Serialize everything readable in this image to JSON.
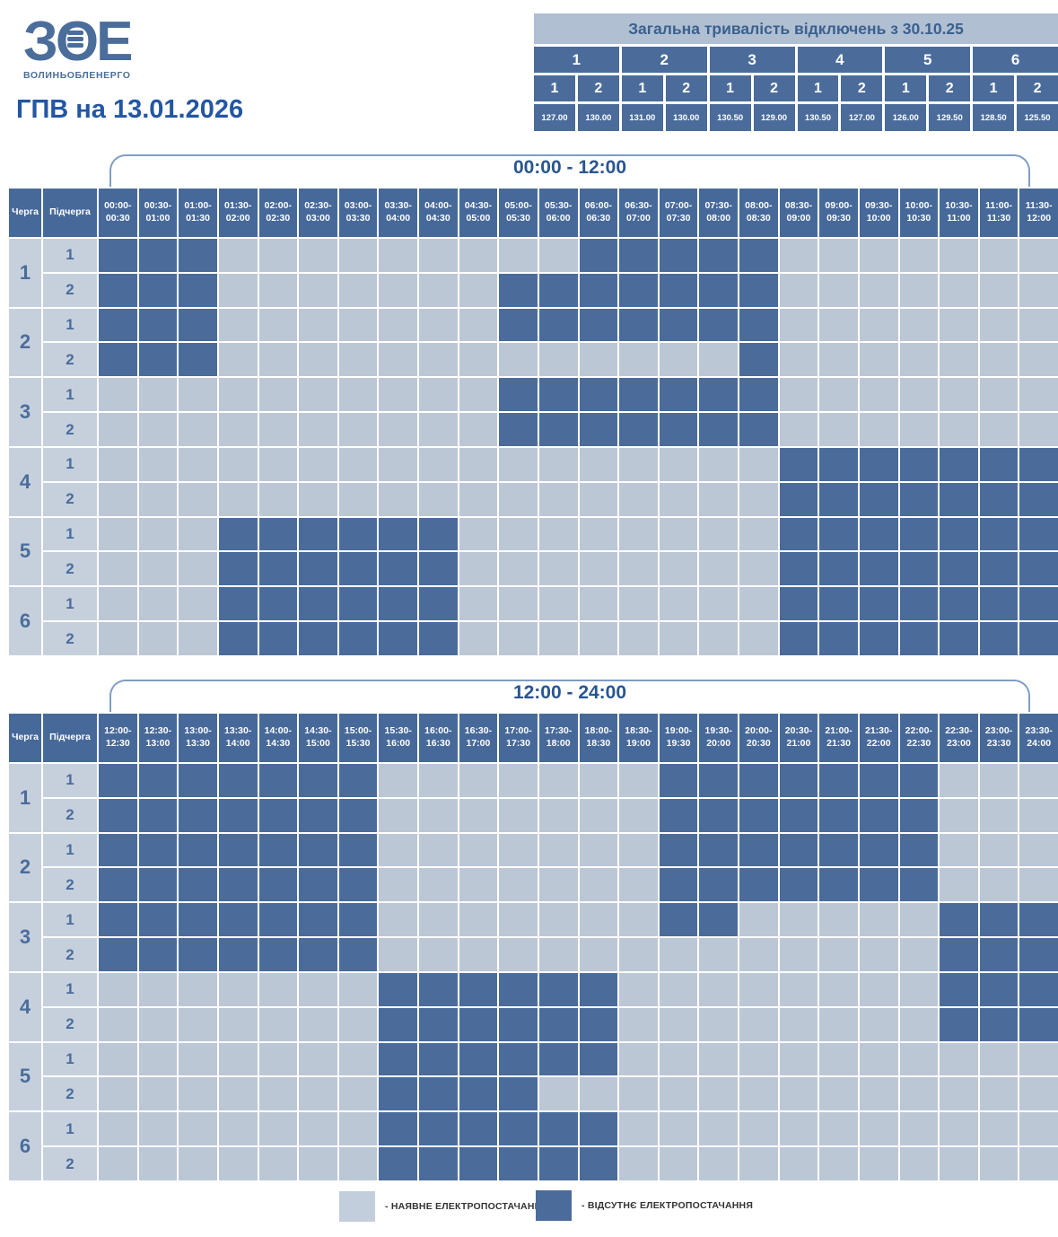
{
  "header": {
    "logo_mark_left": "З",
    "logo_mark_mid": "О",
    "logo_mark_right": "Е",
    "logo_text": "ВОЛИНЬОБЛЕНЕРГО",
    "title": "ГПВ на 13.01.2026"
  },
  "summary_table": {
    "title": "Загальна тривалість відключень з 30.10.25",
    "queues": [
      {
        "label": "1",
        "subs": [
          "1",
          "2"
        ],
        "values": [
          "127.00",
          "130.00"
        ]
      },
      {
        "label": "2",
        "subs": [
          "1",
          "2"
        ],
        "values": [
          "131.00",
          "130.00"
        ]
      },
      {
        "label": "3",
        "subs": [
          "1",
          "2"
        ],
        "values": [
          "130.50",
          "129.00"
        ]
      },
      {
        "label": "4",
        "subs": [
          "1",
          "2"
        ],
        "values": [
          "130.50",
          "127.00"
        ]
      },
      {
        "label": "5",
        "subs": [
          "1",
          "2"
        ],
        "values": [
          "126.00",
          "129.50"
        ]
      },
      {
        "label": "6",
        "subs": [
          "1",
          "2"
        ],
        "values": [
          "128.50",
          "125.50"
        ]
      }
    ]
  },
  "row_header": {
    "queue": "Черга",
    "subqueue": "Підчерга"
  },
  "grids": [
    {
      "bracket_label": "00:00 - 12:00",
      "times": [
        "00:00-00:30",
        "00:30-01:00",
        "01:00-01:30",
        "01:30-02:00",
        "02:00-02:30",
        "02:30-03:00",
        "03:00-03:30",
        "03:30-04:00",
        "04:00-04:30",
        "04:30-05:00",
        "05:00-05:30",
        "05:30-06:00",
        "06:00-06:30",
        "06:30-07:00",
        "07:00-07:30",
        "07:30-08:00",
        "08:00-08:30",
        "08:30-09:00",
        "09:00-09:30",
        "09:30-10:00",
        "10:00-10:30",
        "10:30-11:00",
        "11:00-11:30",
        "11:30-12:00"
      ],
      "rows": [
        {
          "queue": "1",
          "sub": "1"
        },
        {
          "queue": "1",
          "sub": "2"
        },
        {
          "queue": "2",
          "sub": "1"
        },
        {
          "queue": "2",
          "sub": "2"
        },
        {
          "queue": "3",
          "sub": "1"
        },
        {
          "queue": "3",
          "sub": "2"
        },
        {
          "queue": "4",
          "sub": "1"
        },
        {
          "queue": "4",
          "sub": "2"
        },
        {
          "queue": "5",
          "sub": "1"
        },
        {
          "queue": "5",
          "sub": "2"
        },
        {
          "queue": "6",
          "sub": "1"
        },
        {
          "queue": "6",
          "sub": "2"
        }
      ]
    },
    {
      "bracket_label": "12:00 - 24:00",
      "times": [
        "12:00-12:30",
        "12:30-13:00",
        "13:00-13:30",
        "13:30-14:00",
        "14:00-14:30",
        "14:30-15:00",
        "15:00-15:30",
        "15:30-16:00",
        "16:00-16:30",
        "16:30-17:00",
        "17:00-17:30",
        "17:30-18:00",
        "18:00-18:30",
        "18:30-19:00",
        "19:00-19:30",
        "19:30-20:00",
        "20:00-20:30",
        "20:30-21:00",
        "21:00-21:30",
        "21:30-22:00",
        "22:00-22:30",
        "22:30-23:00",
        "23:00-23:30",
        "23:30-24:00"
      ],
      "rows": [
        {
          "queue": "1",
          "sub": "1"
        },
        {
          "queue": "1",
          "sub": "2"
        },
        {
          "queue": "2",
          "sub": "1"
        },
        {
          "queue": "2",
          "sub": "2"
        },
        {
          "queue": "3",
          "sub": "1"
        },
        {
          "queue": "3",
          "sub": "2"
        },
        {
          "queue": "4",
          "sub": "1"
        },
        {
          "queue": "4",
          "sub": "2"
        },
        {
          "queue": "5",
          "sub": "1"
        },
        {
          "queue": "5",
          "sub": "2"
        },
        {
          "queue": "6",
          "sub": "1"
        },
        {
          "queue": "6",
          "sub": "2"
        }
      ]
    }
  ],
  "legend": {
    "available": "- НАЯВНЕ ЕЛЕКТРОПОСТАЧАННЯ",
    "absent": "- ВІДСУТНЄ ЕЛЕКТРОПОСТАЧАННЯ"
  },
  "colors": {
    "outage": "#4b6c9b",
    "available": "#bcc7d6",
    "header_bg": "#47699a",
    "label_bg": "#c6d0dd",
    "title_blue": "#2356a3"
  },
  "chart_data": [
    {
      "type": "heatmap",
      "title": "00:00 - 12:00",
      "x_labels": [
        "00:00-00:30",
        "00:30-01:00",
        "01:00-01:30",
        "01:30-02:00",
        "02:00-02:30",
        "02:30-03:00",
        "03:00-03:30",
        "03:30-04:00",
        "04:00-04:30",
        "04:30-05:00",
        "05:00-05:30",
        "05:30-06:00",
        "06:00-06:30",
        "06:30-07:00",
        "07:00-07:30",
        "07:30-08:00",
        "08:00-08:30",
        "08:30-09:00",
        "09:00-09:30",
        "09:30-10:00",
        "10:00-10:30",
        "10:30-11:00",
        "11:00-11:30",
        "11:30-12:00"
      ],
      "y_labels": [
        "1-1",
        "1-2",
        "2-1",
        "2-2",
        "3-1",
        "3-2",
        "4-1",
        "4-2",
        "5-1",
        "5-2",
        "6-1",
        "6-2"
      ],
      "legend": {
        "0": "наявне електропостачання",
        "1": "відсутнє електропостачання"
      },
      "values": [
        [
          1,
          1,
          1,
          0,
          0,
          0,
          0,
          0,
          0,
          0,
          0,
          0,
          1,
          1,
          1,
          1,
          1,
          0,
          0,
          0,
          0,
          0,
          0,
          0
        ],
        [
          1,
          1,
          1,
          0,
          0,
          0,
          0,
          0,
          0,
          0,
          1,
          1,
          1,
          1,
          1,
          1,
          1,
          0,
          0,
          0,
          0,
          0,
          0,
          0
        ],
        [
          1,
          1,
          1,
          0,
          0,
          0,
          0,
          0,
          0,
          0,
          1,
          1,
          1,
          1,
          1,
          1,
          1,
          0,
          0,
          0,
          0,
          0,
          0,
          0
        ],
        [
          1,
          1,
          1,
          0,
          0,
          0,
          0,
          0,
          0,
          0,
          0,
          0,
          0,
          0,
          0,
          0,
          1,
          0,
          0,
          0,
          0,
          0,
          0,
          0
        ],
        [
          0,
          0,
          0,
          0,
          0,
          0,
          0,
          0,
          0,
          0,
          1,
          1,
          1,
          1,
          1,
          1,
          1,
          0,
          0,
          0,
          0,
          0,
          0,
          0
        ],
        [
          0,
          0,
          0,
          0,
          0,
          0,
          0,
          0,
          0,
          0,
          1,
          1,
          1,
          1,
          1,
          1,
          1,
          0,
          0,
          0,
          0,
          0,
          0,
          0
        ],
        [
          0,
          0,
          0,
          0,
          0,
          0,
          0,
          0,
          0,
          0,
          0,
          0,
          0,
          0,
          0,
          0,
          0,
          1,
          1,
          1,
          1,
          1,
          1,
          1
        ],
        [
          0,
          0,
          0,
          0,
          0,
          0,
          0,
          0,
          0,
          0,
          0,
          0,
          0,
          0,
          0,
          0,
          0,
          1,
          1,
          1,
          1,
          1,
          1,
          1
        ],
        [
          0,
          0,
          0,
          1,
          1,
          1,
          1,
          1,
          1,
          0,
          0,
          0,
          0,
          0,
          0,
          0,
          0,
          1,
          1,
          1,
          1,
          1,
          1,
          1
        ],
        [
          0,
          0,
          0,
          1,
          1,
          1,
          1,
          1,
          1,
          0,
          0,
          0,
          0,
          0,
          0,
          0,
          0,
          1,
          1,
          1,
          1,
          1,
          1,
          1
        ],
        [
          0,
          0,
          0,
          1,
          1,
          1,
          1,
          1,
          1,
          0,
          0,
          0,
          0,
          0,
          0,
          0,
          0,
          1,
          1,
          1,
          1,
          1,
          1,
          1
        ],
        [
          0,
          0,
          0,
          1,
          1,
          1,
          1,
          1,
          1,
          0,
          0,
          0,
          0,
          0,
          0,
          0,
          0,
          1,
          1,
          1,
          1,
          1,
          1,
          1
        ]
      ]
    },
    {
      "type": "heatmap",
      "title": "12:00 - 24:00",
      "x_labels": [
        "12:00-12:30",
        "12:30-13:00",
        "13:00-13:30",
        "13:30-14:00",
        "14:00-14:30",
        "14:30-15:00",
        "15:00-15:30",
        "15:30-16:00",
        "16:00-16:30",
        "16:30-17:00",
        "17:00-17:30",
        "17:30-18:00",
        "18:00-18:30",
        "18:30-19:00",
        "19:00-19:30",
        "19:30-20:00",
        "20:00-20:30",
        "20:30-21:00",
        "21:00-21:30",
        "21:30-22:00",
        "22:00-22:30",
        "22:30-23:00",
        "23:00-23:30",
        "23:30-24:00"
      ],
      "y_labels": [
        "1-1",
        "1-2",
        "2-1",
        "2-2",
        "3-1",
        "3-2",
        "4-1",
        "4-2",
        "5-1",
        "5-2",
        "6-1",
        "6-2"
      ],
      "legend": {
        "0": "наявне електропостачання",
        "1": "відсутнє електропостачання"
      },
      "values": [
        [
          1,
          1,
          1,
          1,
          1,
          1,
          1,
          0,
          0,
          0,
          0,
          0,
          0,
          0,
          1,
          1,
          1,
          1,
          1,
          1,
          1,
          0,
          0,
          0
        ],
        [
          1,
          1,
          1,
          1,
          1,
          1,
          1,
          0,
          0,
          0,
          0,
          0,
          0,
          0,
          1,
          1,
          1,
          1,
          1,
          1,
          1,
          0,
          0,
          0
        ],
        [
          1,
          1,
          1,
          1,
          1,
          1,
          1,
          0,
          0,
          0,
          0,
          0,
          0,
          0,
          1,
          1,
          1,
          1,
          1,
          1,
          1,
          0,
          0,
          0
        ],
        [
          1,
          1,
          1,
          1,
          1,
          1,
          1,
          0,
          0,
          0,
          0,
          0,
          0,
          0,
          1,
          1,
          1,
          1,
          1,
          1,
          1,
          0,
          0,
          0
        ],
        [
          1,
          1,
          1,
          1,
          1,
          1,
          1,
          0,
          0,
          0,
          0,
          0,
          0,
          0,
          1,
          1,
          0,
          0,
          0,
          0,
          0,
          1,
          1,
          1
        ],
        [
          1,
          1,
          1,
          1,
          1,
          1,
          1,
          0,
          0,
          0,
          0,
          0,
          0,
          0,
          0,
          0,
          0,
          0,
          0,
          0,
          0,
          1,
          1,
          1
        ],
        [
          0,
          0,
          0,
          0,
          0,
          0,
          0,
          1,
          1,
          1,
          1,
          1,
          1,
          0,
          0,
          0,
          0,
          0,
          0,
          0,
          0,
          1,
          1,
          1
        ],
        [
          0,
          0,
          0,
          0,
          0,
          0,
          0,
          1,
          1,
          1,
          1,
          1,
          1,
          0,
          0,
          0,
          0,
          0,
          0,
          0,
          0,
          1,
          1,
          1
        ],
        [
          0,
          0,
          0,
          0,
          0,
          0,
          0,
          1,
          1,
          1,
          1,
          1,
          1,
          0,
          0,
          0,
          0,
          0,
          0,
          0,
          0,
          0,
          0,
          0
        ],
        [
          0,
          0,
          0,
          0,
          0,
          0,
          0,
          1,
          1,
          1,
          1,
          0,
          0,
          0,
          0,
          0,
          0,
          0,
          0,
          0,
          0,
          0,
          0,
          0
        ],
        [
          0,
          0,
          0,
          0,
          0,
          0,
          0,
          1,
          1,
          1,
          1,
          1,
          1,
          0,
          0,
          0,
          0,
          0,
          0,
          0,
          0,
          0,
          0,
          0
        ],
        [
          0,
          0,
          0,
          0,
          0,
          0,
          0,
          1,
          1,
          1,
          1,
          1,
          1,
          0,
          0,
          0,
          0,
          0,
          0,
          0,
          0,
          0,
          0,
          0
        ]
      ]
    },
    {
      "type": "table",
      "title": "Загальна тривалість відключень з 30.10.25",
      "columns": [
        "1-1",
        "1-2",
        "2-1",
        "2-2",
        "3-1",
        "3-2",
        "4-1",
        "4-2",
        "5-1",
        "5-2",
        "6-1",
        "6-2"
      ],
      "values": [
        127.0,
        130.0,
        131.0,
        130.0,
        130.5,
        129.0,
        130.5,
        127.0,
        126.0,
        129.5,
        128.5,
        125.5
      ]
    }
  ]
}
